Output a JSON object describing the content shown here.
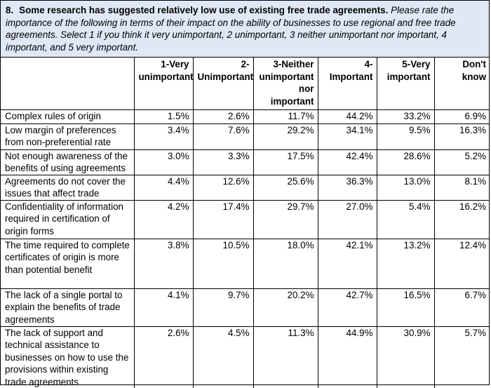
{
  "question": {
    "number": "8.",
    "stem": "Some research has suggested relatively low use of existing free trade agreements.",
    "instruction": "Please rate the importance of the following in terms of their impact on the ability of businesses to use regional and free trade agreements. Select 1 if you think it very unimportant, 2 unimportant, 3 neither unimportant nor important, 4 important, and 5 very important."
  },
  "columns": [
    "",
    "1-Very unimportant",
    "2- Unimportant",
    "3-Neither unimportant nor important",
    "4- Important",
    "5-Very important",
    "Don't know"
  ],
  "rows": [
    {
      "label": "Complex rules of origin",
      "values": [
        "1.5%",
        "2.6%",
        "11.7%",
        "44.2%",
        "33.2%",
        "6.9%"
      ]
    },
    {
      "label": "Low margin of preferences from non-preferential rate",
      "values": [
        "3.4%",
        "7.6%",
        "29.2%",
        "34.1%",
        "9.5%",
        "16.3%"
      ]
    },
    {
      "label": "Not enough awareness of the benefits of using agreements",
      "values": [
        "3.0%",
        "3.3%",
        "17.5%",
        "42.4%",
        "28.6%",
        "5.2%"
      ]
    },
    {
      "label": "Agreements do not cover the issues that affect trade",
      "values": [
        "4.4%",
        "12.6%",
        "25.6%",
        "36.3%",
        "13.0%",
        "8.1%"
      ]
    },
    {
      "label": "Confidentiality of information required in certification of origin forms",
      "values": [
        "4.2%",
        "17.4%",
        "29.7%",
        "27.0%",
        "5.4%",
        "16.2%"
      ]
    },
    {
      "label": "The time required to complete certificates of origin is more than potential benefit",
      "values": [
        "3.8%",
        "10.5%",
        "18.0%",
        "42.1%",
        "13.2%",
        "12.4%"
      ]
    },
    {
      "label": "The lack of a single portal to explain the benefits of trade agreements",
      "values": [
        "4.1%",
        "9.7%",
        "20.2%",
        "42.7%",
        "16.5%",
        "6.7%"
      ]
    },
    {
      "label": "The lack of support and technical assistance to businesses on how to use the provisions within existing trade agreements",
      "values": [
        "2.6%",
        "4.5%",
        "11.3%",
        "44.9%",
        "30.9%",
        "5.7%"
      ]
    }
  ]
}
